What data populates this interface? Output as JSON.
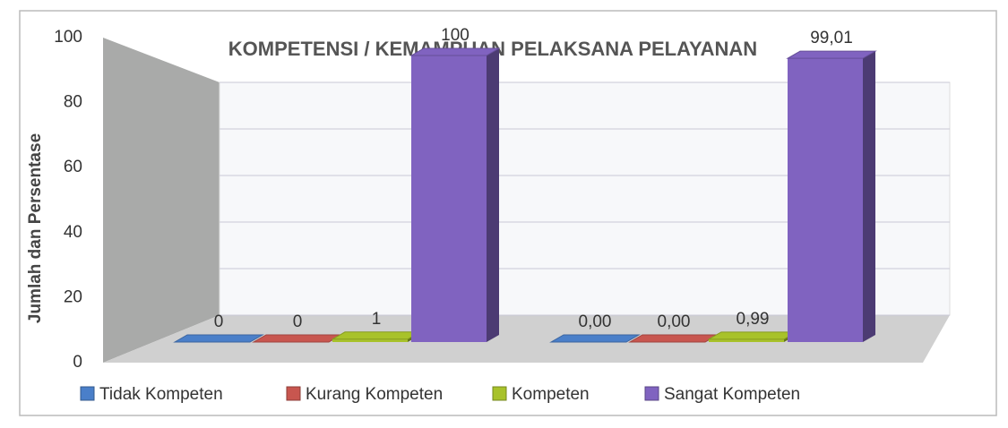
{
  "chart_data": {
    "type": "bar3d",
    "title": "KOMPETENSI / KEMAMPUAN PELAKSANA PELAYANAN",
    "ylabel": "Jumlah dan Persentase",
    "categories": [
      null,
      null
    ],
    "series": [
      {
        "name": "Tidak Kompeten",
        "color": "#4a7fc9",
        "values": [
          0,
          0.0
        ],
        "value_labels": [
          "0",
          "0,00"
        ]
      },
      {
        "name": "Kurang Kompeten",
        "color": "#c8564f",
        "values": [
          0,
          0.0
        ],
        "value_labels": [
          "0",
          "0,00"
        ]
      },
      {
        "name": "Kompeten",
        "color": "#a8c22a",
        "values": [
          1,
          0.99
        ],
        "value_labels": [
          "1",
          "0,99"
        ]
      },
      {
        "name": "Sangat Kompeten",
        "color": "#8063c0",
        "values": [
          100,
          99.01
        ],
        "value_labels": [
          "100",
          "99,01"
        ]
      }
    ],
    "ylim": [
      0,
      100
    ],
    "yticks": [
      0,
      20,
      40,
      60,
      80,
      100
    ],
    "grid": true,
    "legend": "bottom"
  }
}
